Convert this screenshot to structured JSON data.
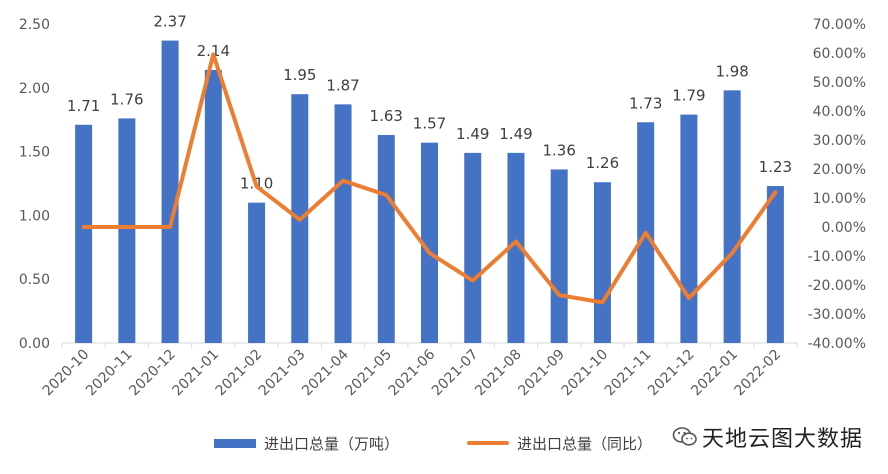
{
  "chart_data": {
    "type": "bar+line",
    "categories": [
      "2020-10",
      "2020-11",
      "2020-12",
      "2021-01",
      "2021-02",
      "2021-03",
      "2021-04",
      "2021-05",
      "2021-06",
      "2021-07",
      "2021-08",
      "2021-09",
      "2021-10",
      "2021-11",
      "2021-12",
      "2022-01",
      "2022-02"
    ],
    "series": [
      {
        "name": "进出口总量（万吨）",
        "type": "bar",
        "axis": "left",
        "values": [
          1.71,
          1.76,
          2.37,
          2.14,
          1.1,
          1.95,
          1.87,
          1.63,
          1.57,
          1.49,
          1.49,
          1.36,
          1.26,
          1.73,
          1.79,
          1.98,
          1.23
        ],
        "labels": [
          "1.71",
          "1.76",
          "2.37",
          "2.14",
          "1.10",
          "1.95",
          "1.87",
          "1.63",
          "1.57",
          "1.49",
          "1.49",
          "1.36",
          "1.26",
          "1.73",
          "1.79",
          "1.98",
          "1.23"
        ]
      },
      {
        "name": "进出口总量（同比）",
        "type": "line",
        "axis": "right",
        "values": [
          0.0,
          0.0,
          0.0,
          59.5,
          14.0,
          2.5,
          16.0,
          11.0,
          -9.0,
          -18.5,
          -5.0,
          -23.5,
          -26.0,
          -2.0,
          -24.5,
          -9.0,
          12.0
        ]
      }
    ],
    "y_left": {
      "min": 0,
      "max": 2.5,
      "ticks": [
        "0.00",
        "0.50",
        "1.00",
        "1.50",
        "2.00",
        "2.50"
      ]
    },
    "y_right": {
      "min": -40,
      "max": 70,
      "ticks": [
        "-40.00%",
        "-30.00%",
        "-20.00%",
        "-10.00%",
        "0.00%",
        "10.00%",
        "20.00%",
        "30.00%",
        "40.00%",
        "50.00%",
        "60.00%",
        "70.00%"
      ]
    },
    "colors": {
      "bar": "#4472C4",
      "line": "#ED7D31"
    },
    "grid": false,
    "legend_position": "bottom"
  },
  "watermark": {
    "text": "天地云图大数据",
    "icon": "wechat-icon"
  }
}
